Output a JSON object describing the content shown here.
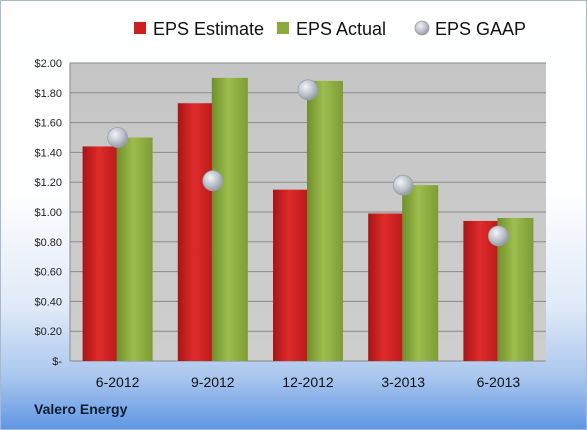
{
  "chart_data": {
    "type": "bar",
    "categories": [
      "6-2012",
      "9-2012",
      "12-2012",
      "3-2013",
      "6-2013"
    ],
    "series": [
      {
        "name": "EPS Estimate",
        "type": "bar",
        "color": "#cc1f1f",
        "values": [
          1.44,
          1.73,
          1.15,
          0.99,
          0.94
        ]
      },
      {
        "name": "EPS Actual",
        "type": "bar",
        "color": "#8aaa3f",
        "values": [
          1.5,
          1.9,
          1.88,
          1.18,
          0.96
        ]
      },
      {
        "name": "EPS GAAP",
        "type": "scatter",
        "color": "#b8bec6",
        "values": [
          1.5,
          1.21,
          1.82,
          1.18,
          0.84
        ]
      }
    ],
    "ylim": [
      0,
      2.0
    ],
    "y_ticks": [
      {
        "value": 0,
        "label": "$-"
      },
      {
        "value": 0.2,
        "label": "$0.20"
      },
      {
        "value": 0.4,
        "label": "$0.40"
      },
      {
        "value": 0.6,
        "label": "$0.60"
      },
      {
        "value": 0.8,
        "label": "$0.80"
      },
      {
        "value": 1.0,
        "label": "$1.00"
      },
      {
        "value": 1.2,
        "label": "$1.20"
      },
      {
        "value": 1.4,
        "label": "$1.40"
      },
      {
        "value": 1.6,
        "label": "$1.60"
      },
      {
        "value": 1.8,
        "label": "$1.80"
      },
      {
        "value": 2.0,
        "label": "$2.00"
      }
    ],
    "grid": true,
    "legend_position": "top",
    "company": "Valero Energy"
  }
}
